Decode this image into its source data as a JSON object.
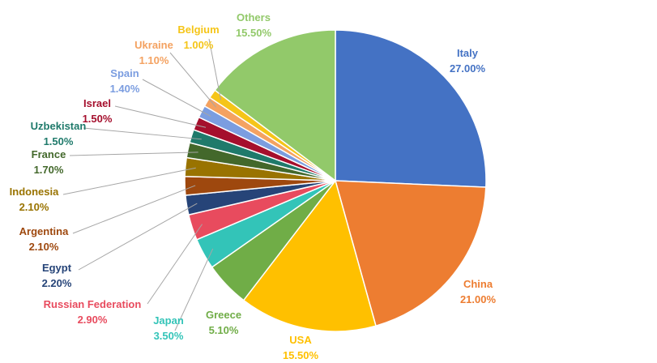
{
  "chart_data": {
    "type": "pie",
    "title": "",
    "start_angle_deg": 0,
    "direction": "clockwise",
    "slices": [
      {
        "label": "Italy",
        "value": 27.0,
        "display": "27.00%",
        "color": "#4472C4"
      },
      {
        "label": "China",
        "value": 21.0,
        "display": "21.00%",
        "color": "#ED7D31"
      },
      {
        "label": "USA",
        "value": 15.5,
        "display": "15.50%",
        "color": "#FFC000"
      },
      {
        "label": "Greece",
        "value": 5.1,
        "display": "5.10%",
        "color": "#70AD47"
      },
      {
        "label": "Japan",
        "value": 3.5,
        "display": "3.50%",
        "color": "#33C4B8"
      },
      {
        "label": "Russian Federation",
        "value": 2.9,
        "display": "2.90%",
        "color": "#E84B5E"
      },
      {
        "label": "Egypt",
        "value": 2.2,
        "display": "2.20%",
        "color": "#264478"
      },
      {
        "label": "Argentina",
        "value": 2.1,
        "display": "2.10%",
        "color": "#9E480E"
      },
      {
        "label": "Indonesia",
        "value": 2.1,
        "display": "2.10%",
        "color": "#997300"
      },
      {
        "label": "France",
        "value": 1.7,
        "display": "1.70%",
        "color": "#43682B"
      },
      {
        "label": "Uzbekistan",
        "value": 1.5,
        "display": "1.50%",
        "color": "#1F7A6B"
      },
      {
        "label": "Israel",
        "value": 1.5,
        "display": "1.50%",
        "color": "#A50F2D"
      },
      {
        "label": "Spain",
        "value": 1.4,
        "display": "1.40%",
        "color": "#7B9DE0"
      },
      {
        "label": "Ukraine",
        "value": 1.1,
        "display": "1.10%",
        "color": "#F4A261"
      },
      {
        "label": "Belgium",
        "value": 1.0,
        "display": "1.00%",
        "color": "#F5C518"
      },
      {
        "label": "Others",
        "value": 15.5,
        "display": "15.50%",
        "color": "#92C96A"
      }
    ]
  }
}
